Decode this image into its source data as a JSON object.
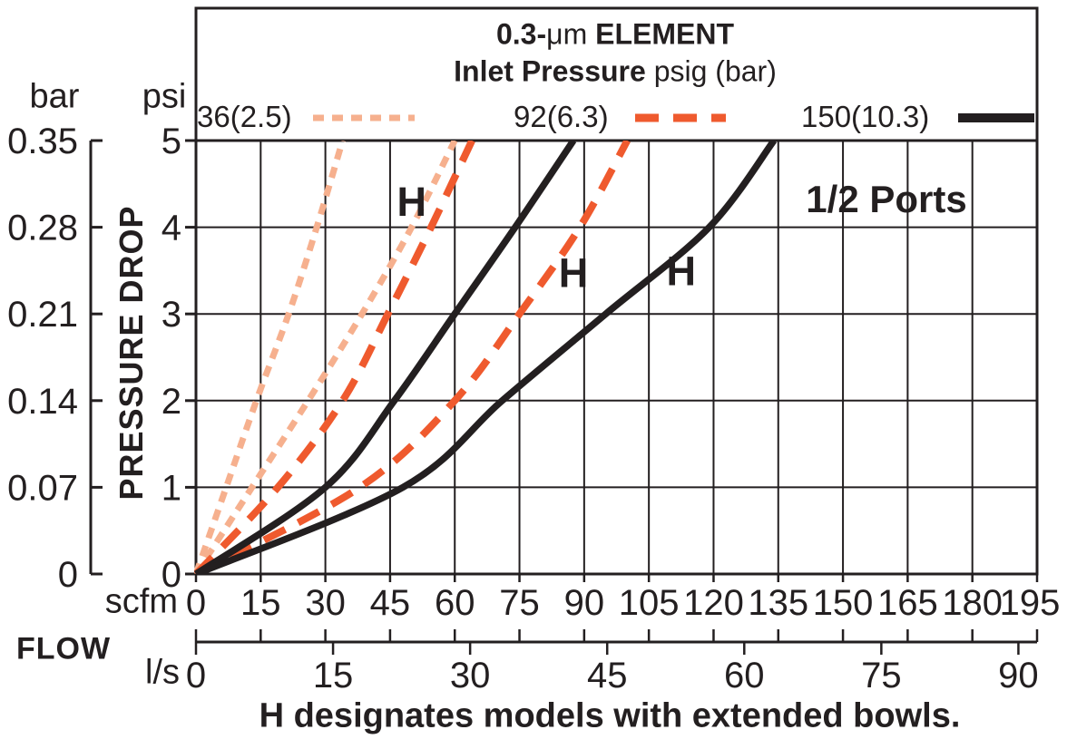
{
  "header": {
    "title_parts": [
      {
        "text": "0.3-",
        "bold": true
      },
      {
        "text": "μm",
        "bold": false
      },
      {
        "text": " ELEMENT",
        "bold": true
      }
    ],
    "subtitle_parts": [
      {
        "text": "Inlet Pressure",
        "bold": true
      },
      {
        "text": " psig (bar)",
        "bold": false
      }
    ]
  },
  "labels": {
    "bar_unit": "bar",
    "psi_unit": "psi",
    "pressure_drop": "PRESSURE DROP",
    "flow": "FLOW",
    "scfm_unit": "scfm",
    "ls_unit": "l/s",
    "ports": "1/2 Ports",
    "caption": "H designates models with extended bowls."
  },
  "colors": {
    "ink": "#231f20",
    "peach": "#f6b08e",
    "orange": "#ef5a2e",
    "background": "#ffffff"
  },
  "chart_data": {
    "type": "line",
    "title": "0.3-μm ELEMENT",
    "subtitle": "Inlet Pressure psig (bar)",
    "port_size_annotation": "1/2 Ports",
    "caption": "H designates models with extended bowls.",
    "grid": true,
    "legend_position": "top",
    "x_axis": {
      "label": "FLOW",
      "units": [
        {
          "name": "scfm",
          "ticks": [
            0,
            15,
            30,
            45,
            60,
            75,
            90,
            105,
            120,
            135,
            150,
            165,
            180,
            195
          ],
          "range": [
            0,
            195
          ]
        },
        {
          "name": "l/s",
          "ticks": [
            0,
            15,
            30,
            45,
            60,
            75,
            90
          ],
          "range": [
            0,
            92
          ],
          "scfm_per_ls": 2.1186
        }
      ]
    },
    "y_axis": {
      "label": "PRESSURE DROP",
      "units": [
        {
          "name": "bar",
          "ticks": [
            "0.35",
            "0.28",
            "0.21",
            "0.14",
            "0.07",
            "0"
          ]
        },
        {
          "name": "psi",
          "ticks": [
            "5",
            "4",
            "3",
            "2",
            "1",
            "0"
          ]
        }
      ],
      "range_psi": [
        0,
        5
      ]
    },
    "legend": [
      {
        "label": "36(2.5)",
        "line_style": "dotted",
        "color": "#f6b08e"
      },
      {
        "label": "92(6.3)",
        "line_style": "dashed",
        "color": "#ef5a2e"
      },
      {
        "label": "150(10.3)",
        "line_style": "solid",
        "color": "#231f20"
      }
    ],
    "series": [
      {
        "name": "36(2.5) standard",
        "inlet_pressure": "36 psig (2.5 bar)",
        "model": "standard",
        "line_style": "dotted",
        "color": "#f6b08e",
        "points_scfm_psi": [
          [
            0,
            0
          ],
          [
            7,
            1
          ],
          [
            14,
            2
          ],
          [
            21.5,
            3
          ],
          [
            28,
            4
          ],
          [
            34,
            5
          ]
        ]
      },
      {
        "name": "36(2.5) H",
        "inlet_pressure": "36 psig (2.5 bar)",
        "model": "H (extended bowl)",
        "line_style": "dotted",
        "color": "#f6b08e",
        "points_scfm_psi": [
          [
            0,
            0
          ],
          [
            13,
            1
          ],
          [
            26,
            2
          ],
          [
            38.5,
            3
          ],
          [
            50,
            4
          ],
          [
            60,
            5
          ]
        ]
      },
      {
        "name": "92(6.3) standard",
        "inlet_pressure": "92 psig (6.3 bar)",
        "model": "standard",
        "line_style": "dashed",
        "color": "#ef5a2e",
        "points_scfm_psi": [
          [
            0,
            0
          ],
          [
            19,
            1
          ],
          [
            34,
            2
          ],
          [
            44.5,
            3
          ],
          [
            54.5,
            4
          ],
          [
            64,
            5
          ]
        ]
      },
      {
        "name": "92(6.3) H",
        "inlet_pressure": "92 psig (6.3 bar)",
        "model": "H (extended bowl)",
        "line_style": "dashed",
        "color": "#ef5a2e",
        "points_scfm_psi": [
          [
            0,
            0
          ],
          [
            38,
            1
          ],
          [
            60,
            2
          ],
          [
            75,
            3
          ],
          [
            89,
            4
          ],
          [
            100,
            5
          ]
        ]
      },
      {
        "name": "150(10.3) standard",
        "inlet_pressure": "150 psig (10.3 bar)",
        "model": "standard",
        "line_style": "solid",
        "color": "#231f20",
        "points_scfm_psi": [
          [
            0,
            0
          ],
          [
            30,
            1
          ],
          [
            46,
            2
          ],
          [
            60,
            3
          ],
          [
            74,
            4
          ],
          [
            87.5,
            5
          ]
        ]
      },
      {
        "name": "150(10.3) H",
        "inlet_pressure": "150 psig (10.3 bar)",
        "model": "H (extended bowl)",
        "line_style": "solid",
        "color": "#231f20",
        "points_scfm_psi": [
          [
            0,
            0
          ],
          [
            48,
            1
          ],
          [
            71,
            2
          ],
          [
            95,
            3
          ],
          [
            119,
            4
          ],
          [
            134,
            5
          ]
        ]
      }
    ],
    "h_markers": [
      {
        "text": "H",
        "x_scfm": 50,
        "y_psi": 4.3
      },
      {
        "text": "H",
        "x_scfm": 87.5,
        "y_psi": 3.48
      },
      {
        "text": "H",
        "x_scfm": 112.5,
        "y_psi": 3.5
      }
    ]
  }
}
